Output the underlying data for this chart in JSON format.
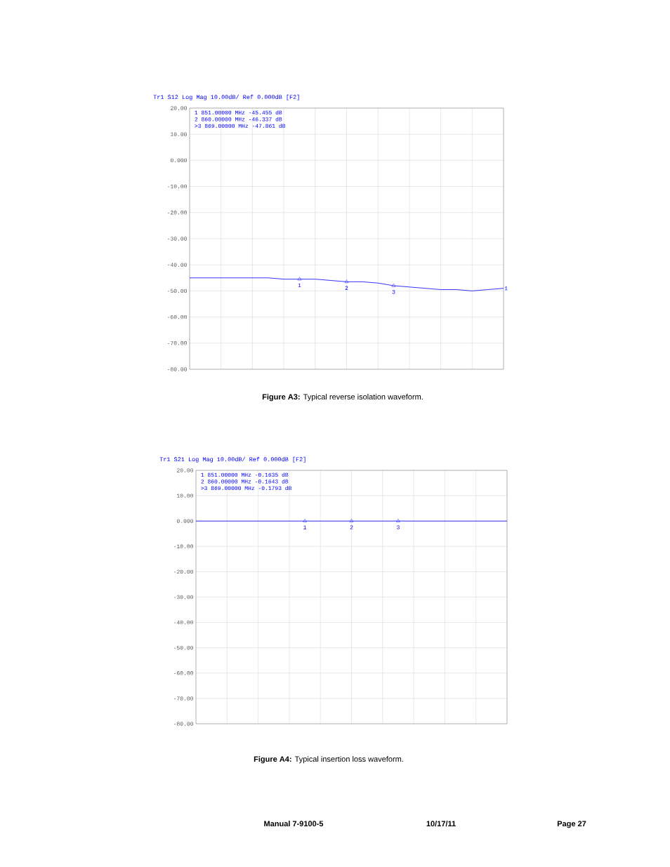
{
  "chart_data": [
    {
      "type": "line",
      "title": "Tr1 S12 Log Mag 10.00dB/ Ref 0.000dB [F2]",
      "categories": [
        null,
        null,
        null,
        null,
        null,
        null,
        null,
        null,
        null,
        null,
        null,
        null,
        null,
        null,
        null,
        null,
        null,
        null,
        null,
        null,
        null
      ],
      "series": [
        {
          "color": "#0000ff",
          "values": [
            -45,
            -45,
            -45,
            -45,
            -45,
            -45,
            -45.5,
            -45.5,
            -45.5,
            -46,
            -46.5,
            -46.5,
            -47,
            -48,
            -48.5,
            -49,
            -49.5,
            -49.5,
            -50,
            -49.5,
            -49
          ]
        },
        {
          "type": "scatter",
          "name": "1",
          "color": "#0000ff",
          "marker": "triangle",
          "values": [
            null,
            null,
            null,
            null,
            null,
            null,
            null,
            -45.5,
            null,
            null,
            null,
            null,
            null,
            null,
            null,
            null,
            null,
            null,
            null,
            null,
            null
          ]
        },
        {
          "type": "scatter",
          "name": "2",
          "color": "#0000ff",
          "marker": "triangle",
          "values": [
            null,
            null,
            null,
            null,
            null,
            null,
            null,
            null,
            null,
            null,
            -46.5,
            null,
            null,
            null,
            null,
            null,
            null,
            null,
            null,
            null,
            null
          ]
        },
        {
          "type": "scatter",
          "name": "3",
          "color": "#0000ff",
          "marker": "triangle",
          "values": [
            null,
            null,
            null,
            null,
            null,
            null,
            null,
            null,
            null,
            null,
            null,
            null,
            null,
            -48,
            null,
            null,
            null,
            null,
            null,
            null,
            null
          ]
        }
      ],
      "ylim": [
        -80,
        20
      ],
      "yticks": [
        {
          "value": 20,
          "label": "20.00"
        },
        {
          "value": 10,
          "label": "10.00"
        },
        {
          "value": 0,
          "label": "0.000"
        },
        {
          "value": -10,
          "label": "-10.00"
        },
        {
          "value": -20,
          "label": "-20.00"
        },
        {
          "value": -30,
          "label": "-30.00"
        },
        {
          "value": -40,
          "label": "-40.00"
        },
        {
          "value": -50,
          "label": "-50.00"
        },
        {
          "value": -60,
          "label": "-60.00"
        },
        {
          "value": -70,
          "label": "-70.00"
        },
        {
          "value": -80,
          "label": "-80.00"
        }
      ],
      "grid": true,
      "tick_labels": "y",
      "annotations": [
        "1   851.00000 MHz -45.455 dB",
        "2   860.00000 MHz -46.337 dB",
        ">3   869.00000 MHz -47.861 dB",
        {
          "text": "1",
          "y": -49
        },
        "**Figure A3:** Typical reverse isolation waveform."
      ]
    },
    {
      "type": "line",
      "title": "Tr1 S21 Log Mag 10.00dB/ Ref 0.000dB [F2]",
      "categories": [
        null,
        null,
        null,
        null,
        null,
        null,
        null,
        null,
        null,
        null,
        null,
        null,
        null,
        null,
        null,
        null,
        null,
        null,
        null,
        null,
        null
      ],
      "series": [
        {
          "color": "#0000ff",
          "values": [
            0,
            0,
            0,
            0,
            0,
            0,
            0,
            0,
            0,
            0,
            0,
            0,
            0,
            0,
            0,
            0,
            0,
            0,
            0,
            0,
            0
          ]
        },
        {
          "type": "scatter",
          "name": "1",
          "color": "#0000ff",
          "marker": "triangle",
          "values": [
            null,
            null,
            null,
            null,
            null,
            null,
            null,
            0,
            null,
            null,
            null,
            null,
            null,
            null,
            null,
            null,
            null,
            null,
            null,
            null,
            null
          ]
        },
        {
          "type": "scatter",
          "name": "2",
          "color": "#0000ff",
          "marker": "triangle",
          "values": [
            null,
            null,
            null,
            null,
            null,
            null,
            null,
            null,
            null,
            null,
            0,
            null,
            null,
            null,
            null,
            null,
            null,
            null,
            null,
            null,
            null
          ]
        },
        {
          "type": "scatter",
          "name": "3",
          "color": "#0000ff",
          "marker": "triangle",
          "values": [
            null,
            null,
            null,
            null,
            null,
            null,
            null,
            null,
            null,
            null,
            null,
            null,
            null,
            0,
            null,
            null,
            null,
            null,
            null,
            null,
            null
          ]
        }
      ],
      "ylim": [
        -80,
        20
      ],
      "yticks": [
        {
          "value": 20,
          "label": "20.00"
        },
        {
          "value": 10,
          "label": "10.00"
        },
        {
          "value": 0,
          "label": "0.000"
        },
        {
          "value": -10,
          "label": "-10.00"
        },
        {
          "value": -20,
          "label": "-20.00"
        },
        {
          "value": -30,
          "label": "-30.00"
        },
        {
          "value": -40,
          "label": "-40.00"
        },
        {
          "value": -50,
          "label": "-50.00"
        },
        {
          "value": -60,
          "label": "-60.00"
        },
        {
          "value": -70,
          "label": "-70.00"
        },
        {
          "value": -80,
          "label": "-80.00"
        }
      ],
      "grid": true,
      "tick_labels": "y",
      "annotations": [
        "1   851.00000 MHz -0.1635 dB",
        "2   860.00000 MHz -0.1643 dB",
        ">3   869.00000 MHz -0.1793 dB",
        "**Figure A4:** Typical insertion loss waveform.",
        "Manual 7-9100-5",
        "10/17/11",
        "Page 27"
      ]
    }
  ]
}
